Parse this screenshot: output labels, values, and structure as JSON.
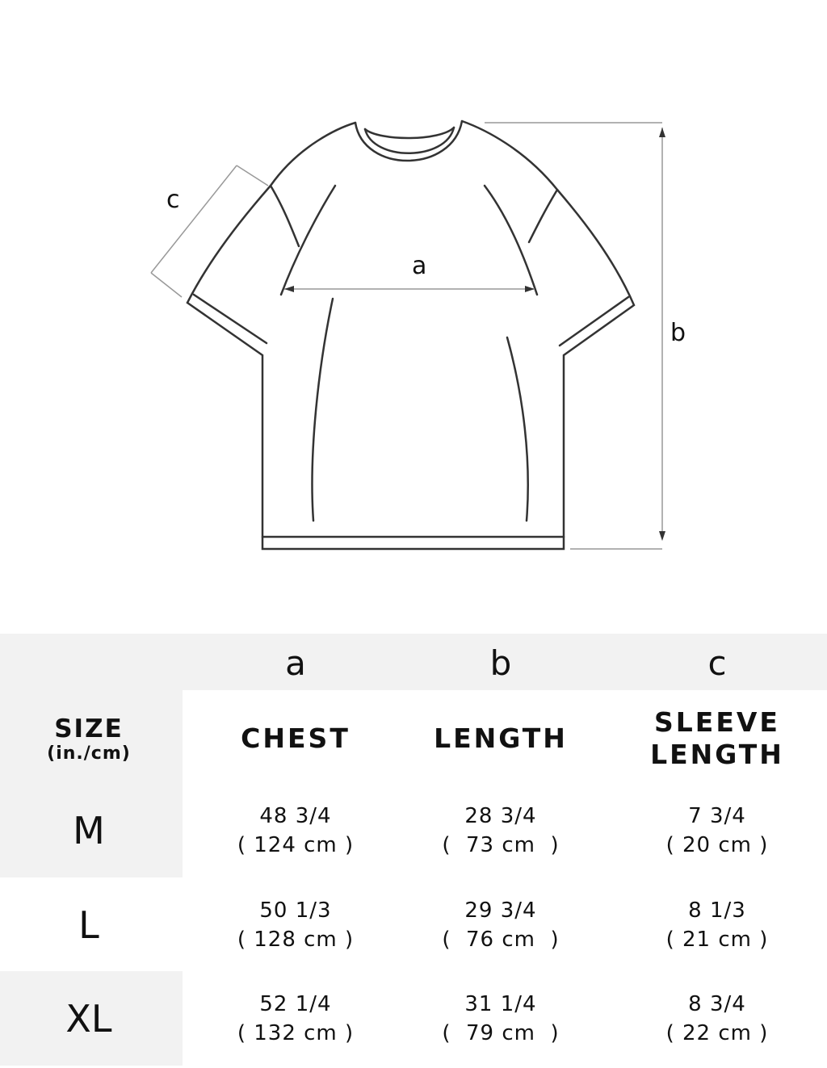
{
  "diagram": {
    "labels": {
      "a": "a",
      "b": "b",
      "c": "c"
    }
  },
  "table": {
    "letters": [
      "a",
      "b",
      "c"
    ],
    "size_header": "SIZE",
    "size_unit": "(in./cm)",
    "columns": [
      "CHEST",
      "LENGTH",
      "SLEEVE\nLENGTH"
    ],
    "column_lines": [
      [
        "CHEST"
      ],
      [
        "LENGTH"
      ],
      [
        "SLEEVE",
        "LENGTH"
      ]
    ],
    "rows": [
      {
        "size": "M",
        "cells": [
          [
            "48 3/4",
            "( 124 cm )"
          ],
          [
            "28 3/4",
            "(  73 cm  )"
          ],
          [
            "7 3/4",
            "( 20 cm )"
          ]
        ]
      },
      {
        "size": "L",
        "cells": [
          [
            "50 1/3",
            "( 128 cm )"
          ],
          [
            "29 3/4",
            "(  76 cm  )"
          ],
          [
            "8 1/3",
            "( 21 cm )"
          ]
        ]
      },
      {
        "size": "XL",
        "cells": [
          [
            "52 1/4",
            "( 132 cm )"
          ],
          [
            "31 1/4",
            "(  79 cm  )"
          ],
          [
            "8 3/4",
            "( 22 cm )"
          ]
        ]
      }
    ]
  },
  "colors": {
    "band": "#f2f2f2",
    "line": "#333333",
    "dim": "#999999"
  }
}
